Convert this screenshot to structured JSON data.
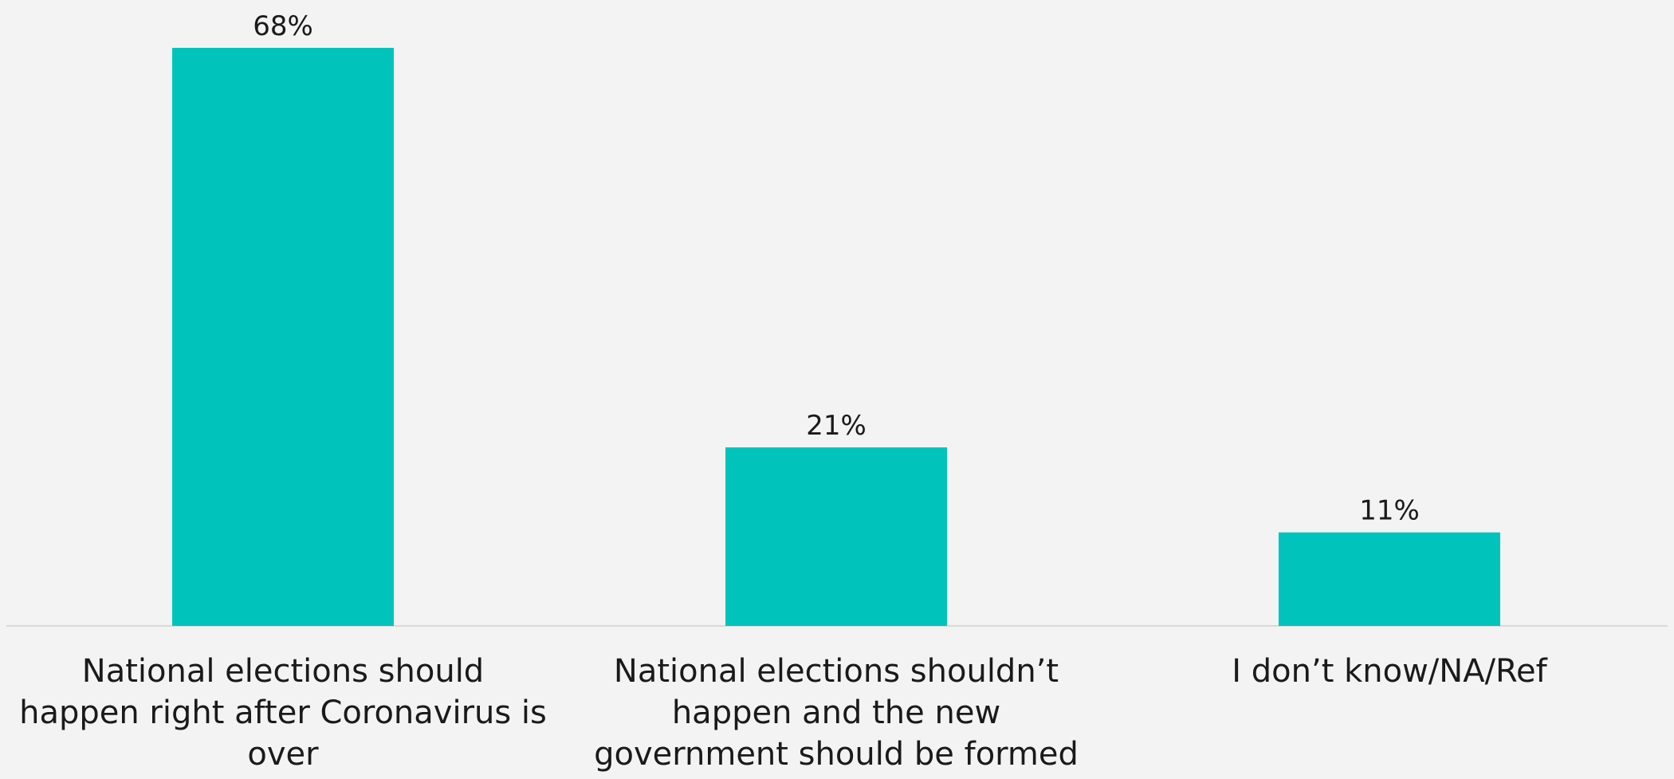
{
  "chart_data": {
    "type": "bar",
    "categories": [
      [
        "National elections should",
        "happen right after Coronavirus is",
        "over"
      ],
      [
        "National elections shouldn’t",
        "happen and the new",
        "government should be formed"
      ],
      [
        "I don’t know/NA/Ref"
      ]
    ],
    "values": [
      68,
      21,
      11
    ],
    "data_labels": [
      "68%",
      "21%",
      "11%"
    ],
    "ylim": [
      0,
      68
    ],
    "grid": false,
    "colors": {
      "bar": "#00c4bc",
      "axis": "#d9d9d9",
      "background": "#f3f3f3"
    }
  }
}
